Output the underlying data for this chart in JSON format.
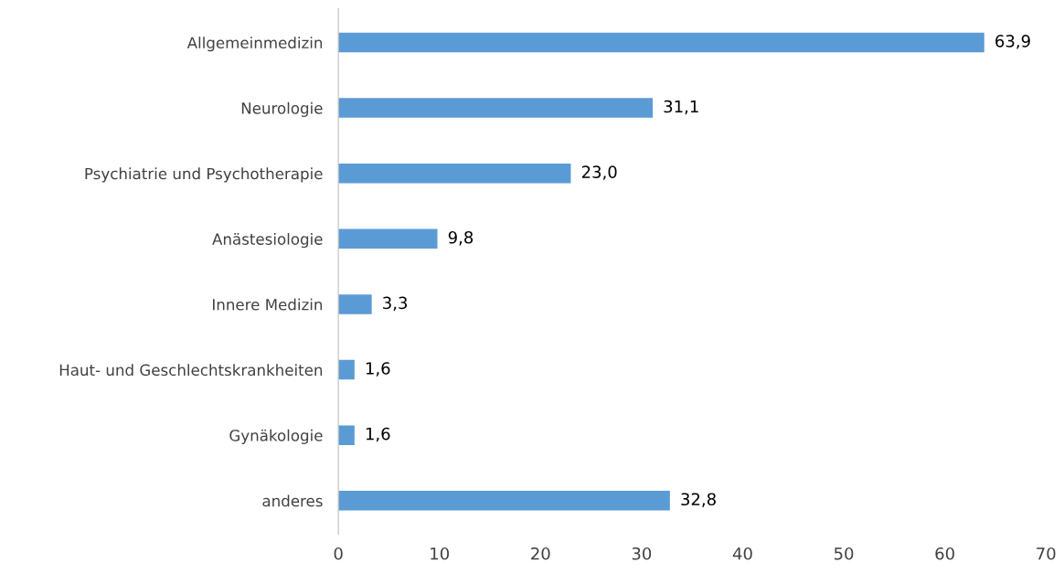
{
  "chart_data": {
    "type": "bar",
    "orientation": "horizontal",
    "categories": [
      "Allgemeinmedizin",
      "Neurologie",
      "Psychiatrie und Psychotherapie",
      "Anästesiologie",
      "Innere Medizin",
      "Haut- und Geschlechtskrankheiten",
      "Gynäkologie",
      "anderes"
    ],
    "values": [
      63.9,
      31.1,
      23.0,
      9.8,
      3.3,
      1.6,
      1.6,
      32.8
    ],
    "value_labels": [
      "63,9",
      "31,1",
      "23,0",
      "9,8",
      "3,3",
      "1,6",
      "1,6",
      "32,8"
    ],
    "color": "#5b9bd5",
    "xlim": [
      0,
      70
    ],
    "xticks": [
      0,
      10,
      20,
      30,
      40,
      50,
      60,
      70
    ],
    "grid": false,
    "legend": false
  }
}
